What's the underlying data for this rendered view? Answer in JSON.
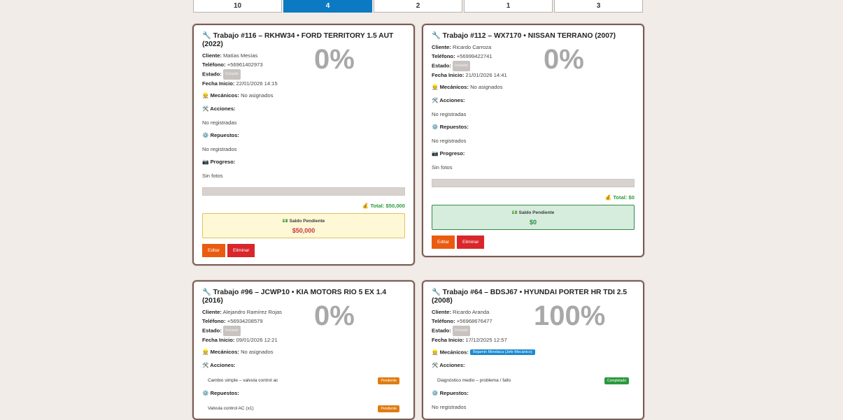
{
  "tabs": [
    {
      "label": "10",
      "active": false
    },
    {
      "label": "4",
      "active": true
    },
    {
      "label": "2",
      "active": false
    },
    {
      "label": "1",
      "active": false
    },
    {
      "label": "3",
      "active": false
    }
  ],
  "labels": {
    "cliente": "Cliente:",
    "telefono": "Teléfono:",
    "estado": "Estado:",
    "fecha": "Fecha Inicio:",
    "mecanicos": "👷 Mecánicos:",
    "acciones": "🛠️ Acciones:",
    "repuestos": "⚙️ Repuestos:",
    "progreso": "📷 Progreso:",
    "saldo": "💵 Saldo Pendiente",
    "editar": "Editar",
    "eliminar": "Eliminar"
  },
  "cards": [
    {
      "title": "🔧 Trabajo #116 – RKHW34 • FORD TERRITORY 1.5 AUT (2022)",
      "percent": "0%",
      "cliente": "Matías Mesías",
      "telefono": "+56961402973",
      "estado": "Iniciado",
      "fecha": "22/01/2026 14:15",
      "mecanicos": "No asignados",
      "acciones": "No registradas",
      "repuestos": "No registrados",
      "progreso": "Sin fotos",
      "progress_value": 0,
      "total": "💰 Total: $50,000",
      "saldo_amount": "$50,000"
    },
    {
      "title": "🔧 Trabajo #112 – WX7170 • NISSAN TERRANO (2007)",
      "percent": "0%",
      "cliente": "Ricardo Carroza",
      "telefono": "+56999422741",
      "estado": "Iniciado",
      "fecha": "21/01/2026 14:41",
      "mecanicos": "No asignados",
      "acciones": "No registradas",
      "repuestos": "No registrados",
      "progreso": "Sin fotos",
      "progress_value": 0,
      "total": "💰 Total: $0",
      "saldo_amount": "$0"
    },
    {
      "title": "🔧 Trabajo #96 – JCWP10 • KIA MOTORS RIO 5 EX 1.4 (2016)",
      "percent": "0%",
      "cliente": "Alejandro Ramírez Rojas",
      "telefono": "+56934208579",
      "estado": "Iniciado",
      "fecha": "09/01/2026 12:21",
      "mecanicos": "No asignados",
      "accion_item": "Cambio simple – valvula control ac",
      "accion_status": "Pendiente",
      "repuesto_item": "Valvula control AC (x1)",
      "repuesto_status": "Pendiente"
    },
    {
      "title": "🔧 Trabajo #64 – BDSJ67 • HYUNDAI PORTER HR TDI 2.5 (2008)",
      "percent": "100%",
      "cliente": "Ricardo Aranda",
      "telefono": "+56968676477",
      "estado": "Iniciado",
      "fecha": "17/12/2025 12:57",
      "mecanico_badge": "Bejamin Mondaca (Jefe Mecánico)",
      "accion_item": "Diagnóstico medio – problema / fallo",
      "accion_status": "Completado",
      "repuestos": "No registrados"
    }
  ]
}
